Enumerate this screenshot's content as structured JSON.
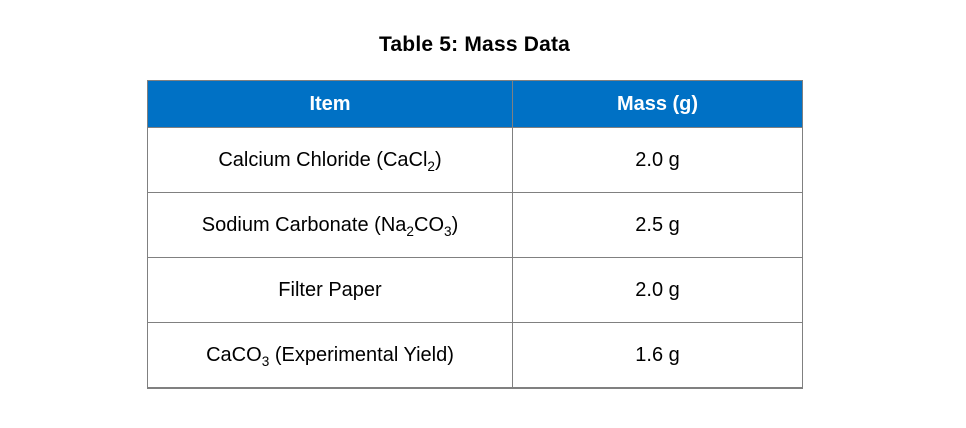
{
  "style": {
    "page_bg": "#ffffff",
    "header_bg": "#0071C5",
    "header_text": "#ffffff",
    "border_color": "#808080",
    "text_color": "#000000"
  },
  "chart_data": {
    "type": "table",
    "title": "Table 5: Mass Data",
    "columns": [
      "Item",
      "Mass (g)"
    ],
    "rows": [
      [
        "Calcium Chloride (CaCl₂)",
        "2.0 g"
      ],
      [
        "Sodium Carbonate (Na₂CO₃)",
        "2.5 g"
      ],
      [
        "Filter Paper",
        "2.0 g"
      ],
      [
        "CaCO₃ (Experimental Yield)",
        "1.6 g"
      ]
    ],
    "layout": {
      "title_position": "top-center",
      "header_style": "solid-blue-bold-white",
      "grid": "all-borders",
      "cell_alignment": "center"
    }
  }
}
